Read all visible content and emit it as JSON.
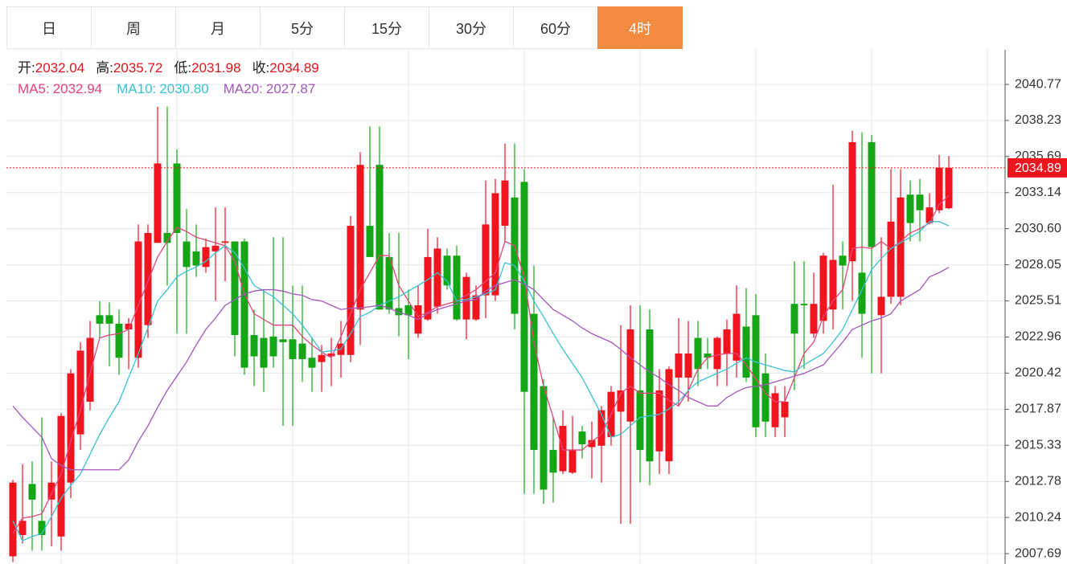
{
  "tabs": [
    "日",
    "周",
    "月",
    "5分",
    "15分",
    "30分",
    "60分",
    "4时"
  ],
  "active_tab": 7,
  "chart_data": {
    "type": "candlestick",
    "ohlc_labels": [
      "开:",
      "高:",
      "低:",
      "收:"
    ],
    "up_color": "#f0141e",
    "down_color": "#14a614",
    "ylim": [
      2006.96,
      2043.21
    ],
    "yticks": [
      2040.77,
      2038.23,
      2035.69,
      2033.14,
      {
        "value": 2030.6,
        "label": "2030.60"
      },
      2028.05,
      2025.51,
      2022.96,
      2020.42,
      2017.87,
      2015.33,
      2012.78,
      2010.24,
      2007.69
    ],
    "grid": true,
    "open": [
      2007.5,
      2009.0,
      2012.6,
      2010.0,
      2011.5,
      2008.9,
      2012.7,
      2016.1,
      2018.4,
      2024.5,
      2024.5,
      2023.9,
      2023.5,
      2021.5,
      2023.8,
      2029.6,
      2030.3,
      2035.2,
      2029.7,
      2029.0,
      2027.9,
      2029.0,
      2029.6,
      2029.7,
      2029.7,
      2023.1,
      2022.9,
      2023.0,
      2022.8,
      2022.8,
      2022.5,
      2021.5,
      2021.2,
      2021.6,
      2021.7,
      2021.7,
      2024.9,
      2030.8,
      2035.1,
      2028.6,
      2025.0,
      2025.2,
      2023.2,
      2024.2,
      2025.1,
      2028.7,
      2028.7,
      2024.2,
      2024.2,
      2025.9,
      2025.9,
      2030.8,
      2032.8,
      2033.9,
      2024.6,
      2019.5,
      2015.0,
      2013.5,
      2013.4,
      2016.3,
      2015.2,
      2015.3,
      2015.9,
      2017.7,
      2017.0,
      2019.2,
      2023.5,
      2014.9,
      2014.2,
      2020.1,
      2020.1,
      2022.9,
      2021.8,
      2020.7,
      2021.8,
      2021.3,
      2023.7,
      2024.5,
      2020.4,
      2016.6,
      2017.3,
      2025.3,
      2025.3,
      2023.2,
      2024.1,
      2024.9,
      2028.7,
      2028.3,
      2027.5,
      2036.7,
      2024.5,
      2025.8,
      2025.8,
      2033.0,
      2033.0,
      2031.0,
      2031.9,
      2032.04
    ],
    "high": [
      2012.9,
      2014.0,
      2014.2,
      2017.3,
      2014.2,
      2017.6,
      2020.7,
      2022.6,
      2024.1,
      2025.5,
      2025.4,
      2024.9,
      2024.3,
      2030.9,
      2030.9,
      2039.2,
      2039.2,
      2036.2,
      2032.0,
      2030.9,
      2029.9,
      2032.1,
      2032.1,
      2029.7,
      2029.9,
      2024.9,
      2026.3,
      2030.0,
      2030.0,
      2026.6,
      2026.6,
      2022.9,
      2022.4,
      2022.9,
      2024.1,
      2031.5,
      2036.0,
      2037.8,
      2037.8,
      2030.3,
      2030.3,
      2026.3,
      2026.6,
      2030.6,
      2030.0,
      2029.2,
      2029.4,
      2027.5,
      2026.6,
      2034.0,
      2034.1,
      2036.6,
      2036.6,
      2034.8,
      2028.0,
      2020.0,
      2017.3,
      2017.8,
      2017.4,
      2016.7,
      2017.0,
      2018.1,
      2019.5,
      2023.8,
      2025.2,
      2025.2,
      2024.9,
      2020.7,
      2020.9,
      2024.3,
      2024.1,
      2024.1,
      2022.9,
      2023.0,
      2024.2,
      2026.6,
      2026.4,
      2026.0,
      2021.8,
      2019.5,
      2019.5,
      2028.3,
      2028.3,
      2027.5,
      2028.9,
      2033.7,
      2029.7,
      2037.5,
      2037.4,
      2037.2,
      2030.0,
      2034.8,
      2034.8,
      2034.0,
      2034.1,
      2033.1,
      2035.8,
      2035.72
    ],
    "low": [
      2007.1,
      2008.4,
      2007.9,
      2007.9,
      2008.2,
      2007.9,
      2011.6,
      2015.0,
      2017.8,
      2022.9,
      2020.9,
      2020.3,
      2020.7,
      2020.8,
      2022.9,
      2029.6,
      2026.6,
      2023.2,
      2023.2,
      2027.2,
      2027.5,
      2025.5,
      2026.9,
      2021.6,
      2020.3,
      2019.5,
      2019.1,
      2020.8,
      2016.7,
      2016.7,
      2019.8,
      2019.1,
      2019.1,
      2019.5,
      2020.1,
      2021.2,
      2022.4,
      2028.6,
      2024.9,
      2024.6,
      2023.0,
      2021.4,
      2022.9,
      2024.1,
      2024.6,
      2026.3,
      2024.1,
      2022.8,
      2024.1,
      2024.3,
      2025.5,
      2029.7,
      2023.5,
      2011.9,
      2011.9,
      2011.2,
      2011.3,
      2013.3,
      2013.3,
      2014.4,
      2013.0,
      2012.7,
      2015.3,
      2009.8,
      2009.8,
      2012.7,
      2012.5,
      2013.3,
      2013.3,
      2018.1,
      2018.4,
      2019.5,
      2020.7,
      2019.5,
      2019.5,
      2020.1,
      2019.8,
      2015.9,
      2015.9,
      2015.9,
      2015.9,
      2019.2,
      2020.7,
      2022.9,
      2023.2,
      2023.5,
      2024.9,
      2025.5,
      2021.5,
      2020.4,
      2020.4,
      2025.3,
      2025.2,
      2029.7,
      2029.7,
      2030.9,
      2031.7,
      2031.98
    ],
    "close": [
      2012.7,
      2010.0,
      2011.5,
      2009.0,
      2012.7,
      2017.4,
      2020.4,
      2022.0,
      2022.9,
      2023.9,
      2023.9,
      2021.5,
      2023.9,
      2029.7,
      2030.3,
      2035.2,
      2029.6,
      2030.3,
      2027.9,
      2028.0,
      2029.3,
      2029.4,
      2029.7,
      2023.1,
      2020.8,
      2021.6,
      2020.8,
      2021.6,
      2022.6,
      2021.4,
      2021.4,
      2020.8,
      2021.7,
      2021.8,
      2022.5,
      2030.8,
      2035.1,
      2028.6,
      2024.9,
      2024.9,
      2024.5,
      2024.5,
      2025.2,
      2028.6,
      2029.2,
      2026.6,
      2024.2,
      2027.2,
      2025.9,
      2030.9,
      2033.1,
      2034.0,
      2024.6,
      2019.1,
      2015.0,
      2012.2,
      2013.4,
      2016.7,
      2015.0,
      2015.4,
      2015.7,
      2017.8,
      2019.1,
      2019.2,
      2023.5,
      2015.0,
      2014.2,
      2019.2,
      2020.7,
      2021.8,
      2021.8,
      2020.7,
      2021.5,
      2022.9,
      2023.5,
      2024.6,
      2020.1,
      2016.6,
      2017.0,
      2019.0,
      2018.4,
      2023.2,
      2025.2,
      2025.3,
      2028.7,
      2028.4,
      2028.0,
      2036.7,
      2024.6,
      2029.3,
      2025.8,
      2031.1,
      2032.8,
      2031.0,
      2031.9,
      2032.1,
      2034.9,
      2034.89
    ],
    "series": [
      {
        "name": "MA5:",
        "color": "#e2457b",
        "values": [
          2009.1,
          2010.2,
          2010.3,
          2010.5,
          2011.9,
          2013.3,
          2015.6,
          2017.8,
          2020.4,
          2022.9,
          2023.1,
          2023.2,
          2023.5,
          2025.2,
          2026.9,
          2028.6,
          2029.7,
          2030.7,
          2030.4,
          2030.0,
          2029.8,
          2029.6,
          2029.4,
          2028.3,
          2026.0,
          2024.6,
          2024.2,
          2023.8,
          2023.8,
          2023.8,
          2023.0,
          2022.4,
          2021.9,
          2021.5,
          2023.0,
          2024.6,
          2026.3,
          2027.5,
          2028.7,
          2028.7,
          2026.6,
          2025.5,
          2024.4,
          2024.7,
          2025.1,
          2025.3,
          2025.5,
          2025.9,
          2026.3,
          2026.9,
          2027.5,
          2029.7,
          2029.4,
          2027.2,
          2022.6,
          2019.5,
          2017.3,
          2015.0,
          2015.0,
          2015.0,
          2015.6,
          2016.1,
          2017.5,
          2019.0,
          2019.5,
          2019.0,
          2019.0,
          2019.0,
          2018.5,
          2018.1,
          2019.2,
          2020.7,
          2021.5,
          2021.7,
          2021.8,
          2021.8,
          2021.0,
          2020.0,
          2019.0,
          2018.4,
          2018.4,
          2020.1,
          2021.8,
          2022.6,
          2024.4,
          2025.5,
          2026.3,
          2029.2,
          2029.3,
          2029.2,
          2029.7,
          2029.2,
          2029.7,
          2030.3,
          2030.6,
          2031.0,
          2032.3,
          2032.94
        ]
      },
      {
        "name": "MA10:",
        "color": "#36c3d3",
        "values": [
          2010.0,
          2008.6,
          2008.9,
          2009.1,
          2010.3,
          2011.6,
          2012.5,
          2013.3,
          2014.7,
          2016.1,
          2017.3,
          2018.4,
          2020.1,
          2021.8,
          2023.6,
          2025.5,
          2026.3,
          2027.2,
          2027.6,
          2027.9,
          2028.3,
          2028.9,
          2029.4,
          2028.9,
          2027.8,
          2026.6,
          2026.2,
          2025.8,
          2025.2,
          2024.6,
          2023.8,
          2022.9,
          2021.9,
          2022.0,
          2022.1,
          2023.2,
          2024.4,
          2024.7,
          2025.2,
          2025.5,
          2025.8,
          2026.2,
          2026.6,
          2027.0,
          2027.5,
          2026.9,
          2025.5,
          2025.6,
          2025.8,
          2026.0,
          2026.3,
          2028.2,
          2028.0,
          2026.9,
          2025.5,
          2024.4,
          2023.2,
          2022.1,
          2021.1,
          2020.1,
          2018.8,
          2017.5,
          2015.9,
          2016.1,
          2016.7,
          2017.3,
          2017.4,
          2017.5,
          2017.9,
          2018.4,
          2019.2,
          2019.8,
          2020.1,
          2020.4,
          2020.7,
          2021.1,
          2021.5,
          2021.2,
          2021.0,
          2020.8,
          2020.6,
          2020.5,
          2021.0,
          2021.4,
          2021.8,
          2022.6,
          2023.5,
          2024.9,
          2026.3,
          2027.7,
          2028.5,
          2029.2,
          2029.6,
          2030.0,
          2030.4,
          2031.1,
          2031.1,
          2030.8
        ],
        "value_labels": [
          null,
          null,
          null,
          null,
          null,
          null,
          null,
          null,
          null,
          null,
          null,
          null,
          null,
          null,
          null,
          null,
          null,
          null,
          null,
          null,
          null,
          null,
          null,
          null,
          null,
          null,
          null,
          null,
          null,
          null,
          null,
          null,
          null,
          null,
          null,
          null,
          null,
          null,
          null,
          null,
          null,
          null,
          null,
          null,
          null,
          null,
          null,
          null,
          null,
          null,
          null,
          null,
          null,
          null,
          null,
          null,
          null,
          null,
          null,
          null,
          null,
          null,
          null,
          null,
          null,
          null,
          null,
          null,
          null,
          null,
          null,
          null,
          null,
          null,
          null,
          null,
          null,
          null,
          null,
          null,
          null,
          null,
          null,
          null,
          null,
          null,
          null,
          null,
          null,
          null,
          null,
          null,
          null,
          null,
          null,
          null,
          null,
          "2030.80"
        ]
      },
      {
        "name": "MA20:",
        "color": "#a455be",
        "values": [
          2018.1,
          2017.3,
          2016.6,
          2015.9,
          2014.4,
          2013.9,
          2013.6,
          2013.6,
          2013.6,
          2013.6,
          2013.6,
          2013.6,
          2014.3,
          2015.6,
          2016.7,
          2018.0,
          2019.2,
          2020.2,
          2021.2,
          2022.4,
          2023.5,
          2024.3,
          2025.2,
          2025.6,
          2026.0,
          2026.2,
          2026.3,
          2026.3,
          2026.2,
          2026.0,
          2025.9,
          2025.6,
          2025.5,
          2025.2,
          2024.9,
          2025.0,
          2025.0,
          2025.1,
          2025.2,
          2025.0,
          2024.7,
          2024.5,
          2024.2,
          2024.6,
          2024.9,
          2025.1,
          2025.3,
          2025.5,
          2025.6,
          2026.2,
          2026.6,
          2026.8,
          2027.0,
          2026.7,
          2026.3,
          2025.6,
          2024.9,
          2024.5,
          2024.1,
          2023.6,
          2023.2,
          2022.9,
          2022.6,
          2022.1,
          2021.5,
          2021.0,
          2020.5,
          2020.1,
          2019.6,
          2019.2,
          2018.7,
          2018.4,
          2018.1,
          2018.1,
          2018.7,
          2019.1,
          2019.4,
          2019.5,
          2019.6,
          2019.8,
          2020.0,
          2020.2,
          2020.4,
          2020.7,
          2021.0,
          2021.8,
          2022.6,
          2023.5,
          2023.8,
          2024.1,
          2024.3,
          2024.6,
          2025.5,
          2025.9,
          2026.3,
          2027.2,
          2027.5,
          2027.87
        ]
      }
    ]
  }
}
